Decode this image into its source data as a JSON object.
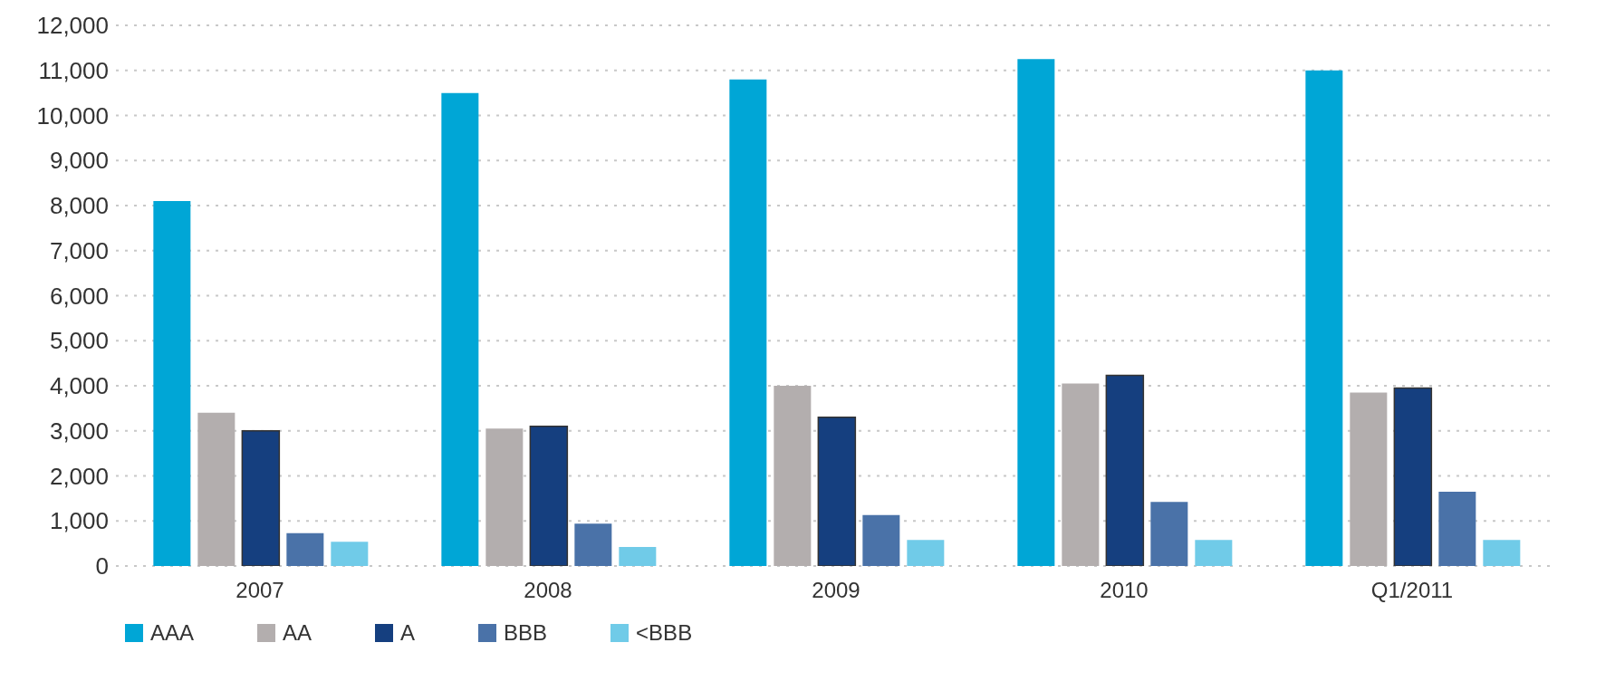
{
  "chart_data": {
    "type": "bar",
    "categories": [
      "2007",
      "2008",
      "2009",
      "2010",
      "Q1/2011"
    ],
    "series": [
      {
        "name": "AAA",
        "color": "#00a6d6",
        "values": [
          8100,
          10500,
          10800,
          11250,
          11000
        ]
      },
      {
        "name": "AA",
        "color": "#b3aeae",
        "values": [
          3400,
          3050,
          4000,
          4050,
          3850
        ]
      },
      {
        "name": "A",
        "color": "#153f7f",
        "values": [
          3000,
          3100,
          3300,
          4230,
          3950
        ]
      },
      {
        "name": "BBB",
        "color": "#4a72a8",
        "values": [
          730,
          940,
          1130,
          1420,
          1650
        ]
      },
      {
        "name": "<BBB",
        "color": "#70cbe8",
        "values": [
          540,
          420,
          580,
          580,
          580
        ]
      }
    ],
    "ylim": [
      0,
      12000
    ],
    "yticks": [
      0,
      {
        "value": 1000,
        "label": "1,000"
      },
      {
        "value": 2000,
        "label": "2,000"
      },
      {
        "value": 3000,
        "label": "3,000"
      },
      {
        "value": 4000,
        "label": "4,000"
      },
      {
        "value": 5000,
        "label": "5,000"
      },
      {
        "value": 6000,
        "label": "6,000"
      },
      {
        "value": 7000,
        "label": "7,000"
      },
      {
        "value": 8000,
        "label": "8,000"
      },
      {
        "value": 9000,
        "label": "9,000"
      },
      {
        "value": 10000,
        "label": "10,000"
      },
      {
        "value": 11000,
        "label": "11,000"
      },
      {
        "value": 12000,
        "label": "12,000"
      }
    ],
    "grid": "y",
    "legend": "bottom left"
  }
}
